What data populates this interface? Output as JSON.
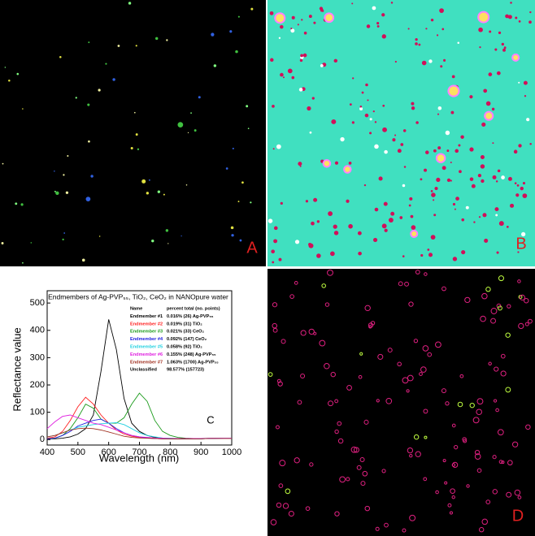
{
  "panels": {
    "a": "A",
    "b": "B",
    "d": "D"
  },
  "chart_data": {
    "type": "line",
    "panel_label": "C",
    "title": "Endmembers of Ag-PVP₅₅, TiO₂, CeO₂ in NANOpure water",
    "xlabel": "Wavelength (nm)",
    "ylabel": "Reflectance value",
    "x": [
      400,
      425,
      450,
      475,
      500,
      525,
      550,
      575,
      600,
      625,
      650,
      675,
      700,
      725,
      750,
      775,
      800,
      825,
      850,
      875,
      900,
      925,
      950,
      975,
      1000
    ],
    "xlim": [
      400,
      1000
    ],
    "ylim": [
      -20,
      545
    ],
    "xticks": [
      400,
      500,
      600,
      700,
      800,
      900,
      1000
    ],
    "yticks": [
      0,
      100,
      200,
      300,
      400,
      500
    ],
    "legend_header": [
      "Name",
      "percent total (no. points)"
    ],
    "series": [
      {
        "name": "Endmember #1",
        "percent": "0.016% (26) Ag-PVP₅₅",
        "color": "#000000",
        "values": [
          2,
          3,
          5,
          10,
          20,
          40,
          90,
          250,
          440,
          330,
          150,
          60,
          30,
          15,
          8,
          5,
          3,
          2,
          2,
          3,
          3,
          4,
          5,
          5,
          5
        ]
      },
      {
        "name": "Endmember #2",
        "percent": "0.019% (31) TiO₂",
        "color": "#ff2020",
        "values": [
          5,
          10,
          30,
          70,
          120,
          155,
          130,
          90,
          60,
          35,
          20,
          12,
          8,
          5,
          4,
          3,
          3,
          3,
          3,
          3,
          4,
          4,
          5,
          5,
          5
        ]
      },
      {
        "name": "Endmember #3",
        "percent": "0.021% (33) CeO₂",
        "color": "#1a9a1a",
        "values": [
          3,
          5,
          15,
          40,
          80,
          130,
          115,
          75,
          60,
          60,
          80,
          130,
          170,
          140,
          70,
          30,
          15,
          8,
          5,
          4,
          4,
          4,
          5,
          5,
          5
        ]
      },
      {
        "name": "Endmember #4",
        "percent": "0.092% (147) CeO₂",
        "color": "#2020e0",
        "values": [
          3,
          5,
          15,
          30,
          50,
          60,
          70,
          75,
          60,
          40,
          25,
          15,
          10,
          6,
          4,
          3,
          3,
          3,
          3,
          3,
          3,
          4,
          4,
          5,
          5
        ]
      },
      {
        "name": "Endmember #5",
        "percent": "0.058% (92) TiO₂",
        "color": "#20d0e0",
        "values": [
          10,
          15,
          25,
          35,
          45,
          50,
          55,
          58,
          60,
          62,
          55,
          40,
          25,
          15,
          10,
          6,
          5,
          4,
          4,
          4,
          4,
          5,
          5,
          5,
          5
        ]
      },
      {
        "name": "Endmember #6",
        "percent": "0.155% (248) Ag-PVP₅₅",
        "color": "#e020e0",
        "values": [
          40,
          65,
          85,
          90,
          80,
          70,
          60,
          55,
          45,
          35,
          25,
          15,
          10,
          8,
          6,
          5,
          4,
          4,
          4,
          4,
          4,
          5,
          5,
          5,
          5
        ]
      },
      {
        "name": "Endmember #7",
        "percent": "1.063% (1700) Ag-PVP₅₅",
        "color": "#a03020",
        "values": [
          10,
          15,
          25,
          35,
          40,
          42,
          40,
          35,
          28,
          20,
          12,
          8,
          6,
          5,
          4,
          3,
          3,
          3,
          3,
          3,
          3,
          4,
          4,
          4,
          4
        ]
      }
    ],
    "legend_extra": {
      "name": "Unclassified",
      "percent": "98.577% (157723)"
    }
  }
}
